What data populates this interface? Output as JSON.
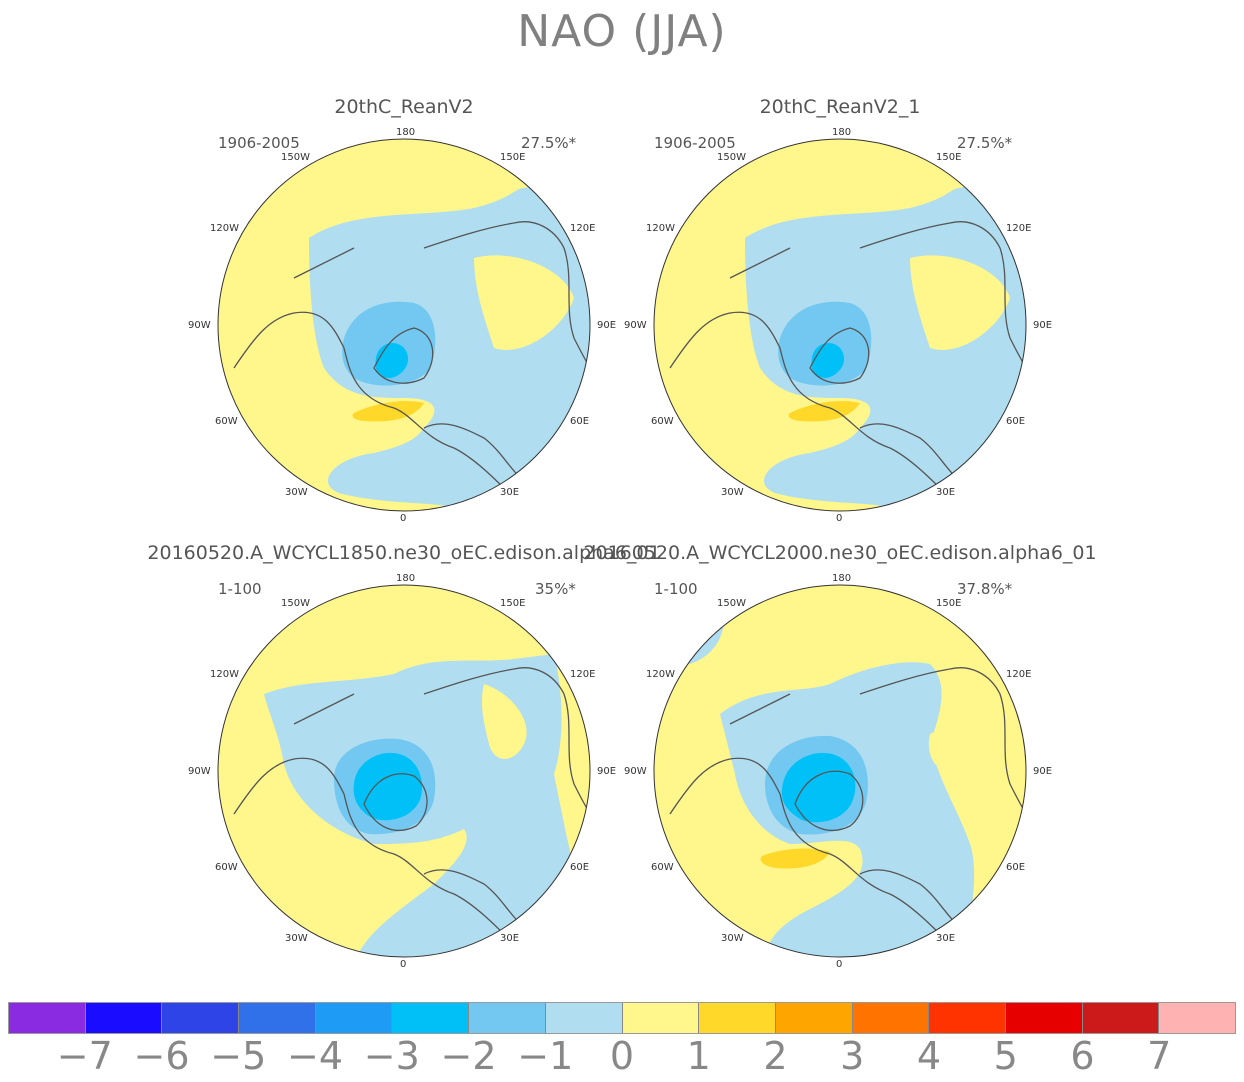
{
  "title": "NAO (JJA)",
  "panels": [
    {
      "title": "20thC_ReanV2",
      "period": "1906-2005",
      "percent": "27.5%*"
    },
    {
      "title": "20thC_ReanV2_1",
      "period": "1906-2005",
      "percent": "27.5%*"
    },
    {
      "title": "20160520.A_WCYCL1850.ne30_oEC.edison.alpha6_01",
      "period": "1-100",
      "percent": "35%*"
    },
    {
      "title": "20160520.A_WCYCL2000.ne30_oEC.edison.alpha6_01",
      "period": "1-100",
      "percent": "37.8%*"
    }
  ],
  "longitude_labels": {
    "top": "180",
    "bottom": "0",
    "w150": "150W",
    "e150": "150E",
    "w120": "120W",
    "e120": "120E",
    "w90": "90W",
    "e90": "90E",
    "w60": "60W",
    "e60": "60E",
    "w30": "30W",
    "e30": "30E"
  },
  "colorbar": {
    "colors": [
      "#8a2be2",
      "#1a0dff",
      "#2f44e6",
      "#3070e8",
      "#1e9bf5",
      "#00c0f8",
      "#72c8f0",
      "#b0ddf0",
      "#fff68c",
      "#ffd82a",
      "#ffa500",
      "#ff7300",
      "#ff3300",
      "#e60000",
      "#cc1a1a",
      "#ffb2b2"
    ],
    "labels": [
      "-7",
      "-6",
      "-5",
      "-4",
      "-3",
      "-2",
      "-1",
      "0",
      "1",
      "2",
      "3",
      "4",
      "5",
      "6",
      "7"
    ]
  },
  "palette": {
    "land_outline": "#555555",
    "level_neg1": "#b0ddf0",
    "level_neg2": "#72c8f0",
    "level_neg3": "#00c0f8",
    "level_0": "#fff68c",
    "level_1": "#ffd82a"
  }
}
